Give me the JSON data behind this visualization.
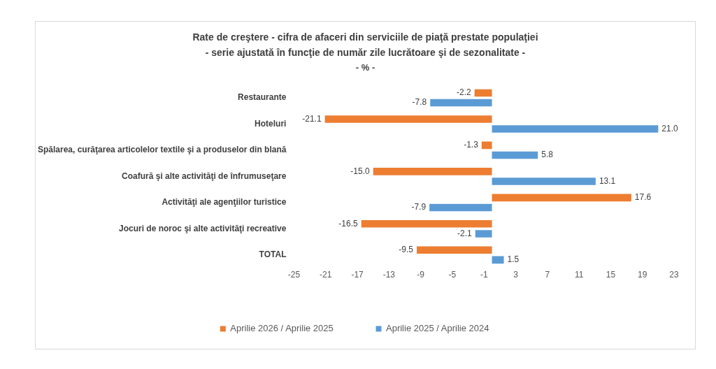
{
  "chart_data": {
    "type": "bar",
    "orientation": "horizontal",
    "title": "Rate de creştere - cifra de afaceri din serviciile de piaţă prestate populaţiei",
    "subtitle": "- serie ajustată în funcţie de număr zile lucrătoare şi de sezonalitate -",
    "annotations": [
      "- % -"
    ],
    "categories": [
      "Restaurante",
      "Hoteluri",
      "Spălarea, curăţarea articolelor textile şi a produselor din blană",
      "Coafură şi alte activităţi de înfrumuseţare",
      "Activităţi ale agenţiilor turistice",
      "Jocuri de noroc şi alte activităţi recreative",
      "TOTAL"
    ],
    "series": [
      {
        "name": "Aprilie 2026 / Aprilie 2025",
        "color": "#ed7d31",
        "values": [
          -2.2,
          -21.1,
          -1.3,
          -15.0,
          17.6,
          -16.5,
          -9.5
        ],
        "value_labels": [
          "-2.2",
          "-21.1",
          "-1.3",
          "-15.0",
          "17.6",
          "-16.5",
          "-9.5"
        ]
      },
      {
        "name": "Aprilie 2025 / Aprilie 2024",
        "color": "#5b9bd5",
        "values": [
          -7.8,
          21.0,
          5.8,
          13.1,
          -7.9,
          -2.1,
          1.5
        ],
        "value_labels": [
          "-7.8",
          "21.0",
          "5.8",
          "13.1",
          "-7.9",
          "-2.1",
          "1.5"
        ]
      }
    ],
    "xlim": [
      -25,
      23
    ],
    "xticks": [
      -25,
      -21,
      -17,
      -13,
      -9,
      -5,
      -1,
      3,
      7,
      11,
      15,
      19,
      23
    ],
    "grid": false,
    "legend": "bottom"
  }
}
